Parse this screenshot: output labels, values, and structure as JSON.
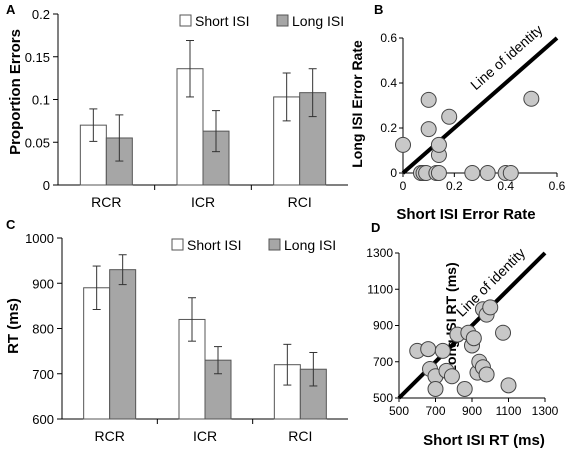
{
  "chart_data": [
    {
      "panel_label": "A",
      "type": "bar",
      "ylabel": "Proportion Errors",
      "ylim": [
        0,
        0.2
      ],
      "yticks": [
        "0",
        "0.05",
        "0.1",
        "0.15",
        "0.2"
      ],
      "categories": [
        "RCR",
        "ICR",
        "RCI"
      ],
      "legend_position": "top-right",
      "series": [
        {
          "name": "Short ISI",
          "color": "#ffffff",
          "values": [
            0.07,
            0.136,
            0.103
          ],
          "errors": [
            0.019,
            0.033,
            0.028
          ]
        },
        {
          "name": "Long ISI",
          "color": "#a6a6a6",
          "values": [
            0.055,
            0.063,
            0.108
          ],
          "errors": [
            0.027,
            0.024,
            0.028
          ]
        }
      ]
    },
    {
      "panel_label": "B",
      "type": "scatter",
      "xlabel": "Short ISI Error Rate",
      "ylabel": "Long ISI Error Rate",
      "xlim": [
        0,
        0.6
      ],
      "ylim": [
        0,
        0.6
      ],
      "xticks": [
        "0",
        "0.2",
        "0.4",
        "0.6"
      ],
      "yticks": [
        "0",
        "0.2",
        "0.4",
        "0.6"
      ],
      "identity_label": "Line of identity",
      "point_color": "#c8c8c8",
      "points": [
        [
          0.0,
          0.125
        ],
        [
          0.07,
          0.0
        ],
        [
          0.08,
          0.0
        ],
        [
          0.09,
          0.0
        ],
        [
          0.1,
          0.325
        ],
        [
          0.1,
          0.195
        ],
        [
          0.13,
          0.0
        ],
        [
          0.14,
          0.0
        ],
        [
          0.14,
          0.08
        ],
        [
          0.14,
          0.125
        ],
        [
          0.18,
          0.25
        ],
        [
          0.27,
          0.0
        ],
        [
          0.33,
          0.0
        ],
        [
          0.4,
          0.0
        ],
        [
          0.42,
          0.0
        ],
        [
          0.5,
          0.33
        ]
      ]
    },
    {
      "panel_label": "C",
      "type": "bar",
      "ylabel": "RT (ms)",
      "ylim": [
        600,
        1000
      ],
      "yticks": [
        "600",
        "700",
        "800",
        "900",
        "1000"
      ],
      "categories": [
        "RCR",
        "ICR",
        "RCI"
      ],
      "legend_position": "top-right",
      "series": [
        {
          "name": "Short ISI",
          "color": "#ffffff",
          "values": [
            890,
            820,
            720
          ],
          "errors": [
            48,
            48,
            45
          ]
        },
        {
          "name": "Long ISI",
          "color": "#a6a6a6",
          "values": [
            930,
            730,
            710
          ],
          "errors": [
            33,
            30,
            37
          ]
        }
      ]
    },
    {
      "panel_label": "D",
      "type": "scatter",
      "xlabel": "Short ISI RT (ms)",
      "ylabel": "Long ISI RT (ms)",
      "xlim": [
        500,
        1300
      ],
      "ylim": [
        500,
        1300
      ],
      "xticks": [
        "500",
        "700",
        "900",
        "1100",
        "1300"
      ],
      "yticks": [
        "500",
        "700",
        "900",
        "1100",
        "1300"
      ],
      "identity_label": "Line of identity",
      "point_color": "#c8c8c8",
      "points": [
        [
          600,
          760
        ],
        [
          660,
          770
        ],
        [
          670,
          660
        ],
        [
          700,
          620
        ],
        [
          700,
          550
        ],
        [
          740,
          760
        ],
        [
          760,
          650
        ],
        [
          790,
          620
        ],
        [
          820,
          850
        ],
        [
          860,
          550
        ],
        [
          880,
          860
        ],
        [
          900,
          790
        ],
        [
          910,
          830
        ],
        [
          930,
          640
        ],
        [
          940,
          700
        ],
        [
          960,
          990
        ],
        [
          960,
          670
        ],
        [
          980,
          960
        ],
        [
          980,
          630
        ],
        [
          1000,
          1000
        ],
        [
          1070,
          860
        ],
        [
          1100,
          570
        ]
      ]
    }
  ]
}
